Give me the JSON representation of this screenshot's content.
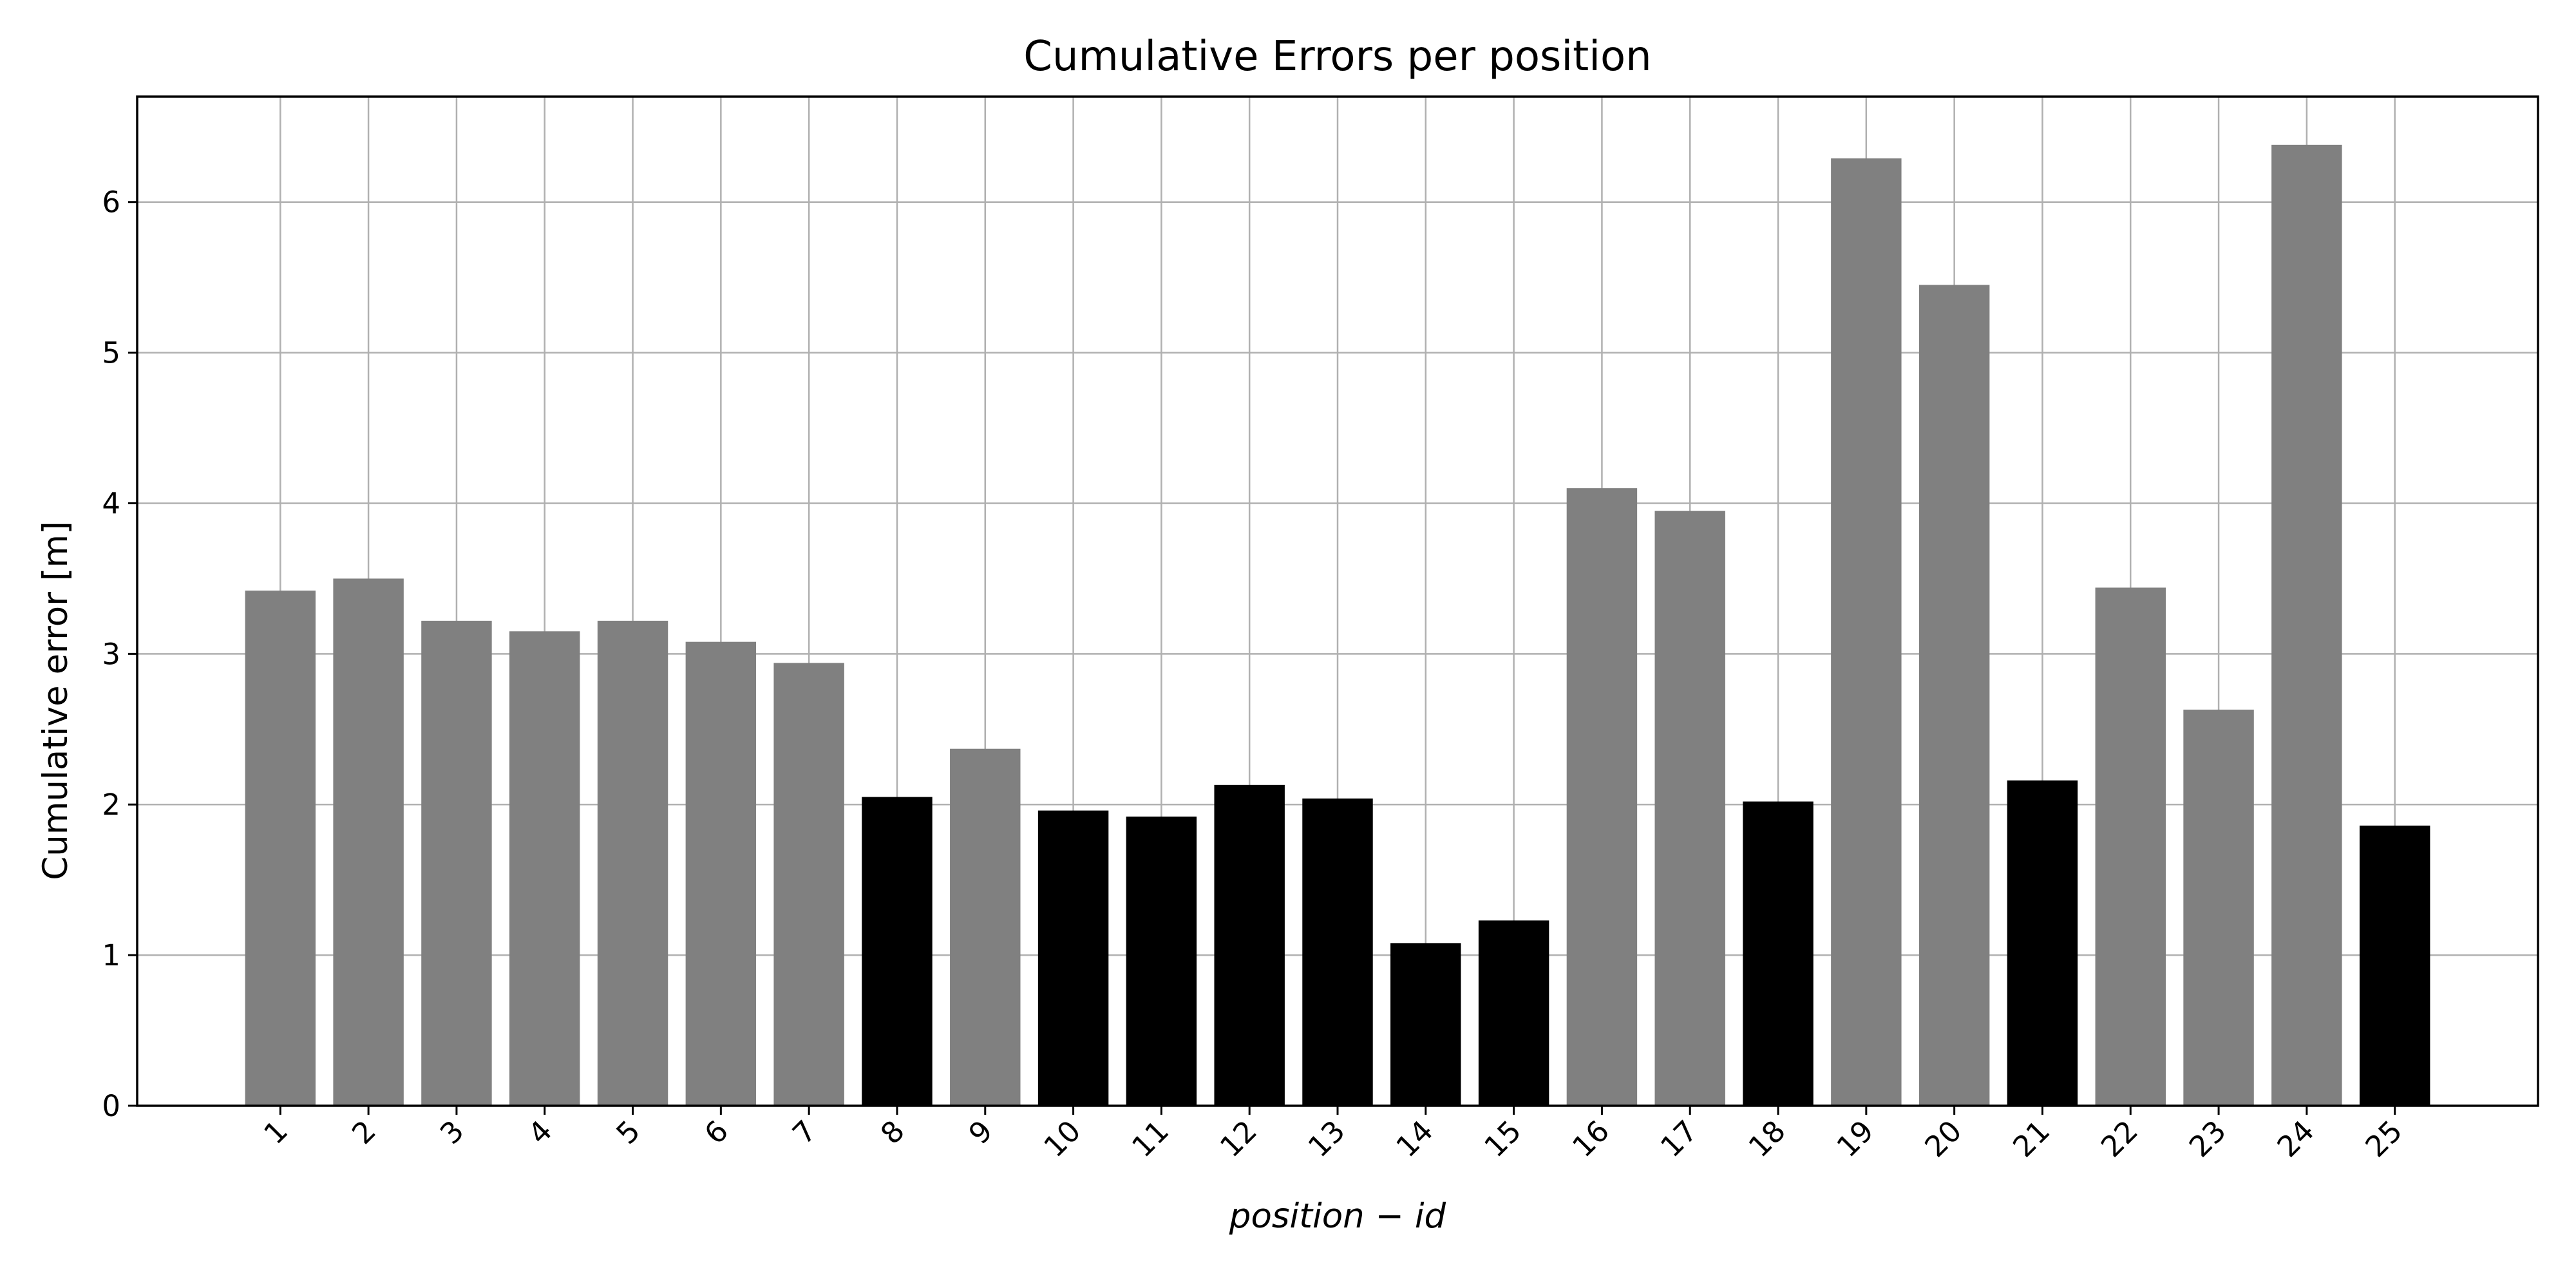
{
  "chart_data": {
    "type": "bar",
    "title": "Cumulative Errors per position",
    "xlabel": "position − id",
    "ylabel": "Cumulative error [m]",
    "categories": [
      "1",
      "2",
      "3",
      "4",
      "5",
      "6",
      "7",
      "8",
      "9",
      "10",
      "11",
      "12",
      "13",
      "14",
      "15",
      "16",
      "17",
      "18",
      "19",
      "20",
      "21",
      "22",
      "23",
      "24",
      "25"
    ],
    "values": [
      3.42,
      3.5,
      3.22,
      3.15,
      3.22,
      3.08,
      2.94,
      2.05,
      2.37,
      1.96,
      1.92,
      2.13,
      2.04,
      1.08,
      1.23,
      4.1,
      3.95,
      2.02,
      6.29,
      5.45,
      2.16,
      3.44,
      2.63,
      6.38,
      1.86
    ],
    "bar_colors": [
      "#808080",
      "#808080",
      "#808080",
      "#808080",
      "#808080",
      "#808080",
      "#808080",
      "#000000",
      "#808080",
      "#000000",
      "#000000",
      "#000000",
      "#000000",
      "#000000",
      "#000000",
      "#808080",
      "#808080",
      "#000000",
      "#808080",
      "#808080",
      "#000000",
      "#808080",
      "#808080",
      "#808080",
      "#000000"
    ],
    "ylim": [
      0,
      6.7
    ],
    "yticks": [
      0,
      1,
      2,
      3,
      4,
      5,
      6
    ],
    "grid": true,
    "legend": "none"
  }
}
